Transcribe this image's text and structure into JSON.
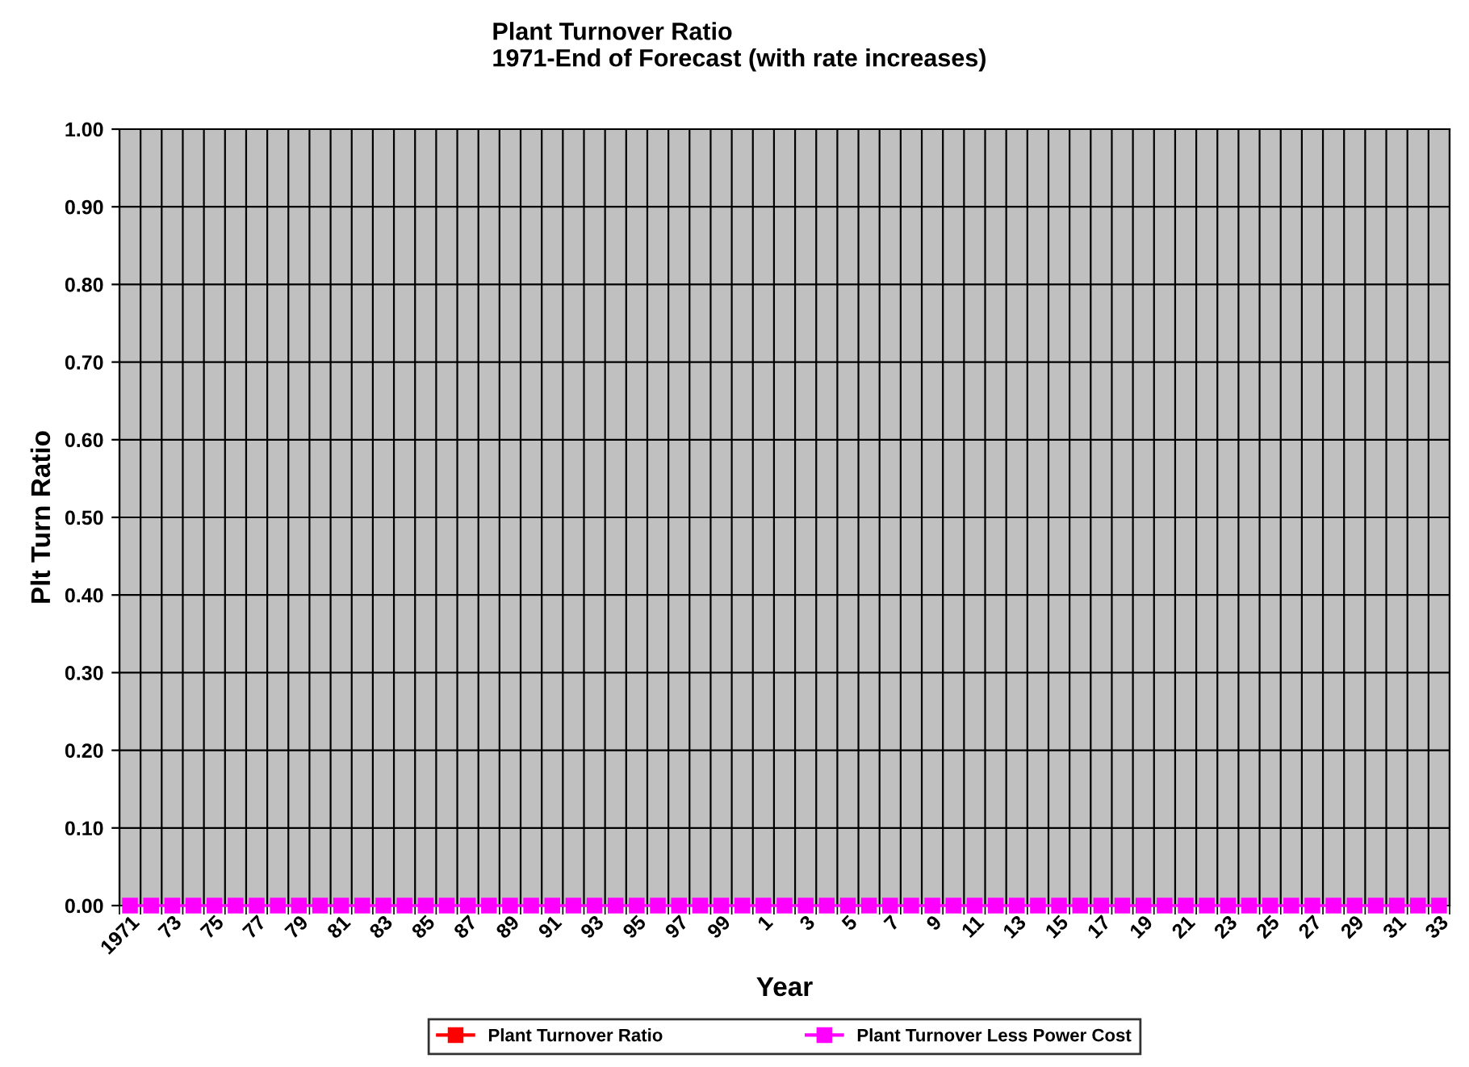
{
  "chart_data": {
    "type": "line",
    "title": "Plant Turnover Ratio\n1971-End of Forecast (with rate increases)",
    "xlabel": "Year",
    "ylabel": "Plt Turn Ratio",
    "categories": [
      "1971",
      null,
      "73",
      null,
      "75",
      null,
      "77",
      null,
      "79",
      null,
      "81",
      null,
      "83",
      null,
      "85",
      null,
      "87",
      null,
      "89",
      null,
      "91",
      null,
      "93",
      null,
      "95",
      null,
      "97",
      null,
      "99",
      null,
      "1",
      null,
      "3",
      null,
      "5",
      null,
      "7",
      null,
      "9",
      null,
      "11",
      null,
      "13",
      null,
      "15",
      null,
      "17",
      null,
      "19",
      null,
      "21",
      null,
      "23",
      null,
      "25",
      null,
      "27",
      null,
      "29",
      null,
      "31",
      null,
      "33"
    ],
    "series": [
      {
        "name": "Plant Turnover Ratio",
        "color": "#ff0000",
        "values": [
          null,
          null,
          null,
          null,
          null,
          null,
          null,
          null,
          null,
          null,
          null,
          null,
          null,
          null,
          null,
          null,
          null,
          null,
          null,
          null,
          null,
          null,
          null,
          null,
          null,
          null,
          null,
          null,
          null,
          null,
          null,
          null,
          null,
          null,
          null,
          null,
          null,
          null,
          null,
          null,
          null,
          null,
          null,
          null,
          null,
          null,
          null,
          null,
          null,
          null,
          null,
          null,
          null,
          null,
          null,
          null,
          null,
          null,
          null,
          null,
          null,
          null,
          null
        ]
      },
      {
        "name": "Plant Turnover Less Power Cost",
        "color": "#ff00ff",
        "values": [
          0,
          0,
          0,
          0,
          0,
          0,
          0,
          0,
          0,
          0,
          0,
          0,
          0,
          0,
          0,
          0,
          0,
          0,
          0,
          0,
          0,
          0,
          0,
          0,
          0,
          0,
          0,
          0,
          0,
          0,
          0,
          0,
          0,
          0,
          0,
          0,
          0,
          0,
          0,
          0,
          0,
          0,
          0,
          0,
          0,
          0,
          0,
          0,
          0,
          0,
          0,
          0,
          0,
          0,
          0,
          0,
          0,
          0,
          0,
          0,
          0,
          0,
          0
        ]
      }
    ],
    "ylim": [
      0,
      1
    ],
    "yticks": [
      {
        "value": 0,
        "label": "0.00"
      },
      {
        "value": 0.1,
        "label": "0.10"
      },
      {
        "value": 0.2,
        "label": "0.20"
      },
      {
        "value": 0.3,
        "label": "0.30"
      },
      {
        "value": 0.4,
        "label": "0.40"
      },
      {
        "value": 0.5,
        "label": "0.50"
      },
      {
        "value": 0.6,
        "label": "0.60"
      },
      {
        "value": 0.7,
        "label": "0.70"
      },
      {
        "value": 0.8,
        "label": "0.80"
      },
      {
        "value": 0.9,
        "label": "0.90"
      },
      {
        "value": 1,
        "label": "1.00"
      }
    ],
    "grid": true,
    "legend": "bottom",
    "marker": "square",
    "line_style": "solid"
  }
}
